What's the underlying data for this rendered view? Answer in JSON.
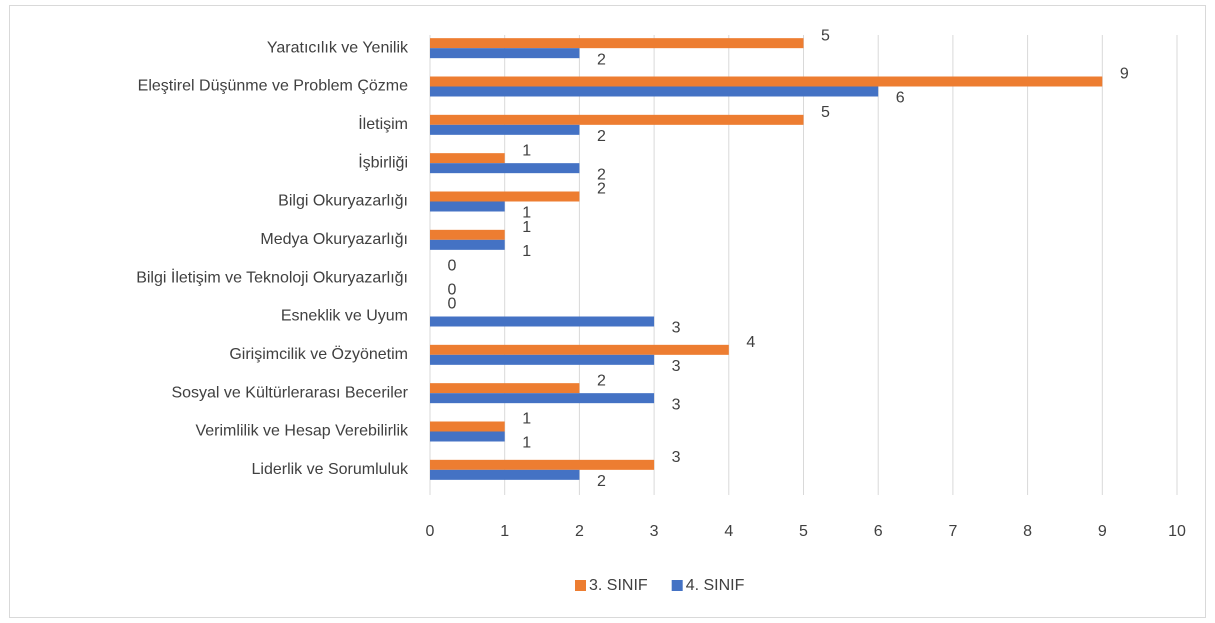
{
  "chart_data": {
    "type": "hbar",
    "categories": [
      "Yaratıcılık ve Yenilik",
      "Eleştirel Düşünme ve Problem Çözme",
      "İletişim",
      "İşbirliği",
      "Bilgi Okuryazarlığı",
      "Medya Okuryazarlığı",
      "Bilgi İletişim ve Teknoloji Okuryazarlığı",
      "Esneklik ve Uyum",
      "Girişimcilik ve Özyönetim",
      "Sosyal ve Kültürlerarası Beceriler",
      "Verimlilik ve Hesap Verebilirlik",
      "Liderlik ve Sorumluluk"
    ],
    "series": [
      {
        "name": "3. SINIF",
        "color": "#ed7d31",
        "values": [
          5,
          9,
          5,
          1,
          2,
          1,
          0,
          0,
          4,
          2,
          1,
          3
        ]
      },
      {
        "name": "4. SINIF",
        "color": "#4472c4",
        "values": [
          2,
          6,
          2,
          2,
          1,
          1,
          0,
          3,
          3,
          3,
          1,
          2
        ]
      }
    ],
    "xlim": [
      0,
      10
    ],
    "xticks": [
      0,
      1,
      2,
      3,
      4,
      5,
      6,
      7,
      8,
      9,
      10
    ],
    "grid": true,
    "legend": "bottom"
  }
}
